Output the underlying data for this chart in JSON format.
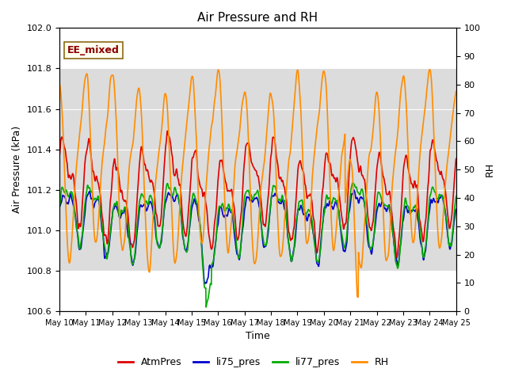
{
  "title": "Air Pressure and RH",
  "xlabel": "Time",
  "ylabel_left": "Air Pressure (kPa)",
  "ylabel_right": "RH",
  "ylim_left": [
    100.6,
    102.0
  ],
  "ylim_right": [
    0,
    100
  ],
  "yticks_left": [
    100.6,
    100.8,
    101.0,
    101.2,
    101.4,
    101.6,
    101.8,
    102.0
  ],
  "yticks_right": [
    0,
    10,
    20,
    30,
    40,
    50,
    60,
    70,
    80,
    90,
    100
  ],
  "xtick_labels": [
    "May 10",
    "May 11",
    "May 12",
    "May 13",
    "May 14",
    "May 15",
    "May 16",
    "May 17",
    "May 18",
    "May 19",
    "May 20",
    "May 21",
    "May 22",
    "May 23",
    "May 24",
    "May 25"
  ],
  "annotation_text": "EE_mixed",
  "annotation_color": "#8B0000",
  "annotation_bg": "#FFFFF0",
  "annotation_border": "#8B6914",
  "bg_band_ylo": 100.8,
  "bg_band_yhi": 101.8,
  "bg_band_color": "#DCDCDC",
  "grid_color": "#C8C8C8",
  "colors": {
    "AtmPres": "#DD0000",
    "li75_pres": "#0000CC",
    "li77_pres": "#00AA00",
    "RH": "#FF8C00"
  },
  "lw": 1.2,
  "legend_labels": [
    "AtmPres",
    "li75_pres",
    "li77_pres",
    "RH"
  ],
  "legend_colors": [
    "#DD0000",
    "#0000CC",
    "#00AA00",
    "#FF8C00"
  ],
  "n_days": 15,
  "seed": 12345
}
